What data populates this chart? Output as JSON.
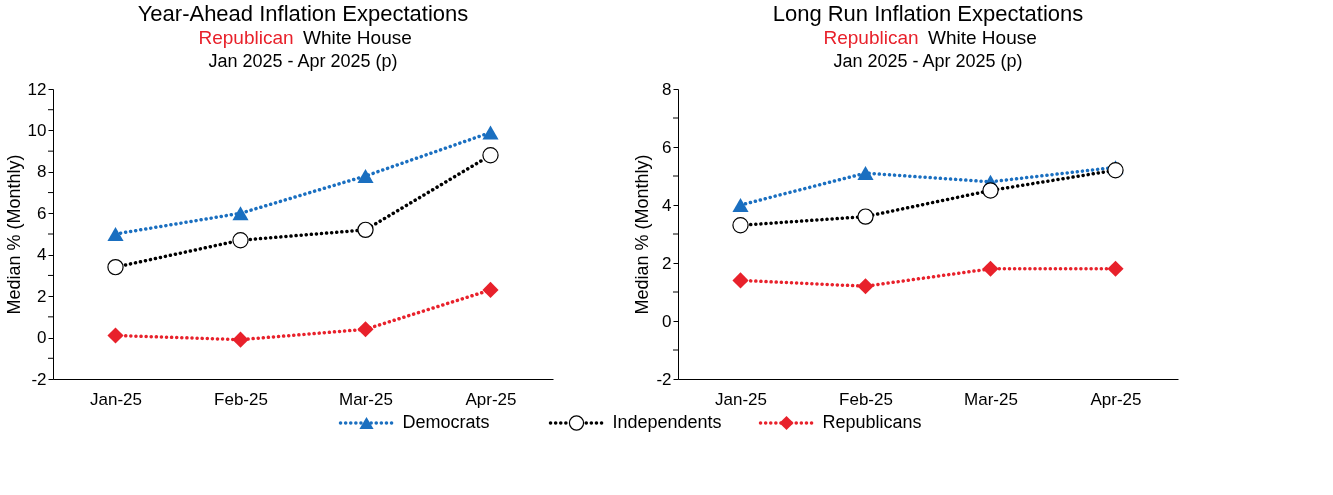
{
  "chart_data": [
    {
      "type": "line",
      "title": "Year-Ahead Inflation Expectations",
      "subtitle": [
        "Republican White House",
        "Jan 2025 - Apr 2025 (p)"
      ],
      "ylabel": "Median % (Monthly)",
      "categories": [
        "Jan-25",
        "Feb-25",
        "Mar-25",
        "Apr-25"
      ],
      "ylim": [
        -2,
        12
      ],
      "yticks": [
        -2,
        {
          "value": -1,
          "label": null
        },
        0,
        {
          "value": 1,
          "label": null
        },
        2,
        {
          "value": 3,
          "label": null
        },
        4,
        {
          "value": 5,
          "label": null
        },
        6,
        {
          "value": 7,
          "label": null
        },
        8,
        {
          "value": 9,
          "label": null
        },
        10,
        {
          "value": 11,
          "label": null
        },
        12
      ],
      "grid": false,
      "legend": "bottom",
      "line_style": "dotted",
      "series": [
        {
          "name": "Democrats",
          "color": "#1a6fc0",
          "marker": "triangle",
          "values": [
            5.0,
            6.0,
            7.8,
            9.9
          ]
        },
        {
          "name": "Independents",
          "color": "#000000",
          "marker": "circle",
          "values": [
            3.4,
            4.7,
            5.2,
            8.8
          ]
        },
        {
          "name": "Republicans",
          "color": "#e8212b",
          "marker": "diamond",
          "values": [
            0.1,
            -0.1,
            0.4,
            2.3
          ]
        }
      ]
    },
    {
      "type": "line",
      "title": "Long Run Inflation Expectations",
      "subtitle": [
        "Republican White House",
        "Jan 2025 - Apr 2025 (p)"
      ],
      "ylabel": "Median % (Monthly)",
      "categories": [
        "Jan-25",
        "Feb-25",
        "Mar-25",
        "Apr-25"
      ],
      "ylim": [
        -2,
        8
      ],
      "yticks": [
        -2,
        {
          "value": -1,
          "label": null
        },
        0,
        {
          "value": 1,
          "label": null
        },
        2,
        {
          "value": 3,
          "label": null
        },
        4,
        {
          "value": 5,
          "label": null
        },
        6,
        {
          "value": 7,
          "label": null
        },
        8
      ],
      "grid": false,
      "legend": "bottom",
      "line_style": "dotted",
      "series": [
        {
          "name": "Democrats",
          "color": "#1a6fc0",
          "marker": "triangle",
          "values": [
            4.0,
            5.1,
            4.8,
            5.3
          ]
        },
        {
          "name": "Independents",
          "color": "#000000",
          "marker": "circle",
          "values": [
            3.3,
            3.6,
            4.5,
            5.2
          ]
        },
        {
          "name": "Republicans",
          "color": "#e8212b",
          "marker": "diamond",
          "values": [
            1.4,
            1.2,
            1.8,
            1.8
          ]
        }
      ]
    }
  ]
}
